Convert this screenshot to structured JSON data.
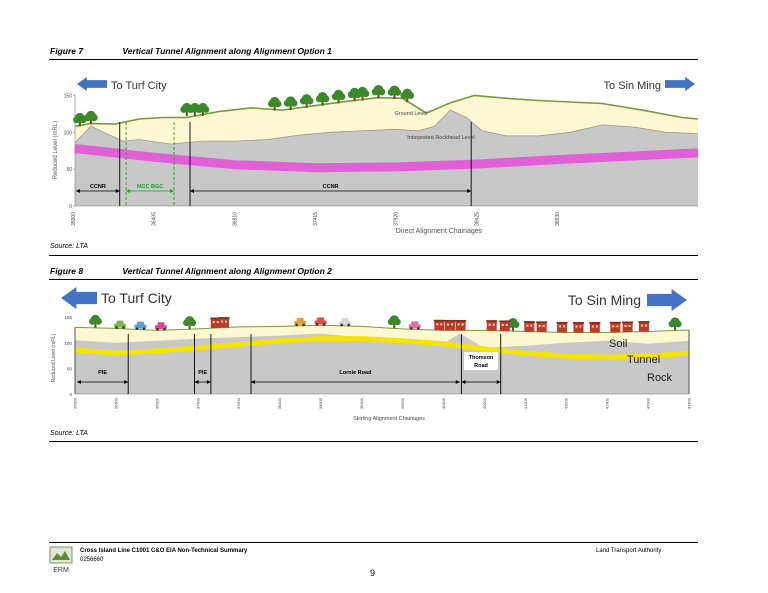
{
  "figure1": {
    "number": "Figure 7",
    "title": "Vertical Tunnel Alignment along Alignment Option 1",
    "source": "Source: LTA",
    "chart_data": {
      "type": "area",
      "left_arrow_label": "To Turf City",
      "right_arrow_label": "To Sin Ming",
      "ylabel": "Reduced Level (mRL)",
      "xlabel": "Direct Alignment Chainages",
      "yticks": [
        "0",
        "50",
        "100",
        "150"
      ],
      "ylim": [
        0,
        160
      ],
      "xticks": [
        "35900",
        "36405",
        "36910",
        "37415",
        "37920",
        "38425",
        "38930"
      ],
      "ground_label": "Ground Level",
      "rockhead_label": "Interpreted Rockhead Level",
      "segments": [
        {
          "label": "CCNR",
          "from": 35900,
          "to": 36180
        },
        {
          "label": "MCC BGC",
          "from": 36220,
          "to": 36520
        },
        {
          "label": "CCNR",
          "from": 36620,
          "to": 38380
        }
      ],
      "ground_level": [
        [
          35900,
          108
        ],
        [
          36000,
          112
        ],
        [
          36150,
          111
        ],
        [
          36300,
          118
        ],
        [
          36450,
          120
        ],
        [
          36600,
          120
        ],
        [
          36800,
          128
        ],
        [
          37000,
          133
        ],
        [
          37200,
          130
        ],
        [
          37400,
          136
        ],
        [
          37600,
          142
        ],
        [
          37800,
          147
        ],
        [
          37950,
          146
        ],
        [
          38100,
          126
        ],
        [
          38250,
          140
        ],
        [
          38400,
          150
        ],
        [
          38600,
          146
        ],
        [
          38800,
          143
        ],
        [
          39000,
          141
        ],
        [
          39200,
          139
        ],
        [
          39450,
          130
        ],
        [
          39700,
          120
        ],
        [
          39800,
          118
        ]
      ],
      "rockhead_level": [
        [
          35900,
          86
        ],
        [
          36000,
          108
        ],
        [
          36100,
          98
        ],
        [
          36200,
          88
        ],
        [
          36300,
          90
        ],
        [
          36500,
          84
        ],
        [
          36700,
          88
        ],
        [
          36900,
          88
        ],
        [
          37100,
          90
        ],
        [
          37300,
          96
        ],
        [
          37500,
          100
        ],
        [
          37700,
          102
        ],
        [
          37900,
          104
        ],
        [
          38050,
          102
        ],
        [
          38150,
          108
        ],
        [
          38250,
          130
        ],
        [
          38350,
          120
        ],
        [
          38450,
          102
        ],
        [
          38600,
          95
        ],
        [
          38800,
          95
        ],
        [
          39000,
          100
        ],
        [
          39200,
          110
        ],
        [
          39400,
          107
        ],
        [
          39600,
          100
        ],
        [
          39800,
          98
        ]
      ],
      "tunnel_level": [
        [
          35900,
          78
        ],
        [
          36400,
          66
        ],
        [
          36900,
          56
        ],
        [
          37415,
          52
        ],
        [
          37920,
          53
        ],
        [
          38425,
          57
        ],
        [
          38930,
          63
        ],
        [
          39800,
          72
        ]
      ]
    }
  },
  "figure2": {
    "number": "Figure 8",
    "title": "Vertical Tunnel Alignment along Alignment Option 2",
    "source": "Source: LTA",
    "chart_data": {
      "type": "area",
      "left_arrow_label": "To Turf City",
      "right_arrow_label": "To Sin Ming",
      "ylabel": "Reduced Level (mRL)",
      "xlabel": "Skirting Alignment Chainages",
      "yticks": [
        "0",
        "50",
        "100",
        "150"
      ],
      "ylim": [
        0,
        160
      ],
      "xticks": [
        "35900",
        "36400",
        "36900",
        "37400",
        "37900",
        "38400",
        "38900",
        "39400",
        "39900",
        "40400",
        "40900",
        "41400",
        "41900",
        "42400",
        "42900",
        "43400"
      ],
      "soil_label": "Soil",
      "tunnel_label": "Tunnel",
      "rock_label": "Rock",
      "segments": [
        {
          "label": "PIE",
          "from": 35900,
          "to": 36550
        },
        {
          "label": "PIE",
          "from": 37360,
          "to": 37560
        },
        {
          "label": "Lornie Road",
          "from": 38050,
          "to": 40600
        },
        {
          "label": "Thomson Road",
          "from": 40620,
          "to": 41100
        }
      ],
      "ground_level": [
        [
          35900,
          130
        ],
        [
          36400,
          128
        ],
        [
          36900,
          124
        ],
        [
          37400,
          127
        ],
        [
          37900,
          131
        ],
        [
          38400,
          132
        ],
        [
          38900,
          134
        ],
        [
          39400,
          132
        ],
        [
          39900,
          127
        ],
        [
          40400,
          124
        ],
        [
          40900,
          124
        ],
        [
          41400,
          122
        ],
        [
          41900,
          120
        ],
        [
          42400,
          120
        ],
        [
          42900,
          122
        ],
        [
          43400,
          125
        ]
      ],
      "rock_level": [
        [
          35900,
          105
        ],
        [
          36400,
          100
        ],
        [
          36900,
          104
        ],
        [
          37400,
          108
        ],
        [
          37900,
          111
        ],
        [
          38400,
          114
        ],
        [
          38900,
          118
        ],
        [
          39400,
          110
        ],
        [
          39900,
          104
        ],
        [
          40400,
          98
        ],
        [
          40600,
          118
        ],
        [
          40900,
          90
        ],
        [
          41400,
          94
        ],
        [
          41900,
          100
        ],
        [
          42400,
          104
        ],
        [
          42900,
          98
        ],
        [
          43400,
          104
        ]
      ],
      "tunnel_level": [
        [
          35900,
          86
        ],
        [
          36400,
          80
        ],
        [
          36900,
          84
        ],
        [
          37400,
          90
        ],
        [
          37900,
          97
        ],
        [
          38400,
          104
        ],
        [
          38900,
          108
        ],
        [
          39400,
          108
        ],
        [
          39900,
          104
        ],
        [
          40400,
          98
        ],
        [
          40900,
          88
        ],
        [
          41400,
          80
        ],
        [
          41900,
          74
        ],
        [
          42400,
          72
        ],
        [
          42900,
          74
        ],
        [
          43400,
          80
        ]
      ]
    }
  },
  "footer": {
    "doc_title": "Cross Island Line C1001 C&O EIA Non-Technical Summary",
    "doc_number": "0256660",
    "authority": "Land Transport Authority",
    "page_number": "9",
    "logo_text": "ERM"
  },
  "colors": {
    "arrow": "#4472c4",
    "soil": "#fbf8d2",
    "rock": "#c8c8c8",
    "tunnel1": "#e060d8",
    "tunnel2": "#f4e400",
    "ground_line": "#7a9a3a",
    "tree": "#3a8a2a",
    "dim_green": "#1aa51a"
  }
}
